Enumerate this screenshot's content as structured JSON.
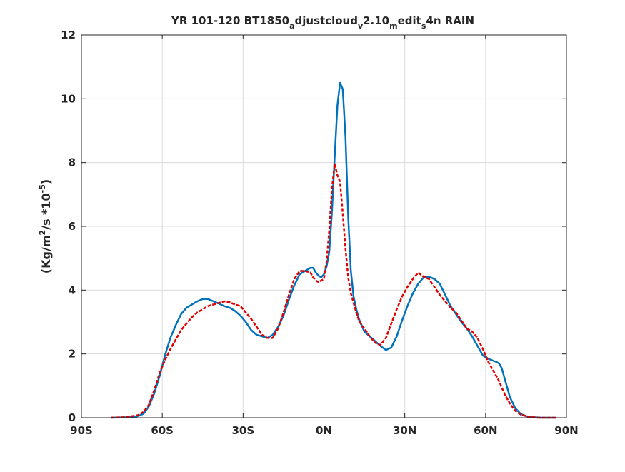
{
  "chart_data": {
    "type": "line",
    "title_parts": {
      "t1": "YR 101-120 BT1850",
      "s1": "a",
      "t2": "djustcloud",
      "s2": "v",
      "t3": "2.10",
      "s3": "m",
      "t4": "edit",
      "s4": "s",
      "t5": "4n RAIN"
    },
    "ylabel_parts": {
      "p1": "(Kg/m",
      "sup1": "2",
      "p2": "/s   *10",
      "sup2": "-5",
      "p3": ")"
    },
    "xlim": [
      -90,
      90
    ],
    "ylim": [
      0,
      12
    ],
    "xticks": [
      -90,
      -60,
      -30,
      0,
      30,
      60,
      90
    ],
    "xtick_labels": [
      "90S",
      "60S",
      "30S",
      "0N",
      "30N",
      "60N",
      "90N"
    ],
    "yticks": [
      0,
      2,
      4,
      6,
      8,
      10,
      12
    ],
    "ytick_labels": [
      "0",
      "2",
      "4",
      "6",
      "8",
      "10",
      "12"
    ],
    "grid": true,
    "series": [
      {
        "color": "#0072BD",
        "style": "solid",
        "x": [
          -79,
          -70,
          -67,
          -65,
          -63,
          -61,
          -59,
          -57,
          -55,
          -53,
          -51,
          -49,
          -47,
          -45,
          -43,
          -41,
          -39,
          -37,
          -35,
          -33,
          -31,
          -29,
          -27,
          -25,
          -23,
          -21,
          -19,
          -17,
          -15,
          -13,
          -11,
          -9,
          -7,
          -6,
          -5,
          -4,
          -3,
          -2,
          -1,
          0,
          1,
          2,
          3,
          4,
          5,
          6,
          7,
          8,
          9,
          10,
          11,
          12,
          13,
          14,
          15,
          17,
          19,
          21,
          23,
          25,
          27,
          29,
          31,
          33,
          35,
          37,
          39,
          41,
          43,
          45,
          47,
          49,
          51,
          53,
          55,
          57,
          59,
          61,
          63,
          64,
          65,
          66,
          67,
          69,
          71,
          73,
          75,
          77,
          79,
          81,
          83,
          85,
          86
        ],
        "values": [
          0.0,
          0.02,
          0.12,
          0.35,
          0.75,
          1.3,
          1.95,
          2.5,
          2.9,
          3.25,
          3.45,
          3.55,
          3.65,
          3.72,
          3.72,
          3.65,
          3.58,
          3.5,
          3.45,
          3.35,
          3.2,
          3.0,
          2.75,
          2.6,
          2.55,
          2.5,
          2.6,
          2.85,
          3.2,
          3.7,
          4.15,
          4.5,
          4.6,
          4.65,
          4.7,
          4.7,
          4.55,
          4.45,
          4.4,
          4.5,
          4.75,
          5.2,
          6.5,
          8.2,
          9.8,
          10.5,
          10.3,
          8.8,
          6.3,
          4.6,
          3.8,
          3.4,
          3.1,
          2.9,
          2.7,
          2.55,
          2.4,
          2.25,
          2.12,
          2.2,
          2.55,
          3.05,
          3.5,
          3.9,
          4.2,
          4.4,
          4.42,
          4.35,
          4.2,
          3.85,
          3.5,
          3.25,
          3.0,
          2.8,
          2.55,
          2.25,
          1.95,
          1.85,
          1.78,
          1.75,
          1.7,
          1.55,
          1.25,
          0.65,
          0.3,
          0.12,
          0.05,
          0.02,
          0.01,
          0.0,
          0.0,
          0.0,
          0.0
        ]
      },
      {
        "color": "#E00000",
        "style": "dashed",
        "x": [
          -79,
          -73,
          -69,
          -67,
          -65,
          -63,
          -61,
          -59,
          -57,
          -55,
          -53,
          -51,
          -49,
          -47,
          -45,
          -43,
          -41,
          -39,
          -37,
          -35,
          -33,
          -31,
          -29,
          -27,
          -25,
          -23,
          -21,
          -19,
          -17,
          -15,
          -13,
          -11,
          -9,
          -7,
          -5,
          -4,
          -3,
          -2,
          -1,
          0,
          1,
          2,
          3,
          4,
          5,
          6,
          7,
          8,
          9,
          10,
          11,
          12,
          13,
          14,
          15,
          17,
          19,
          21,
          23,
          25,
          27,
          29,
          31,
          33,
          35,
          37,
          39,
          41,
          43,
          45,
          47,
          49,
          51,
          53,
          55,
          57,
          59,
          61,
          63,
          65,
          67,
          69,
          71,
          73,
          75,
          77,
          79,
          81,
          83,
          85,
          86
        ],
        "values": [
          0.0,
          0.02,
          0.08,
          0.18,
          0.4,
          0.85,
          1.4,
          1.8,
          2.15,
          2.45,
          2.75,
          2.95,
          3.15,
          3.3,
          3.4,
          3.5,
          3.55,
          3.6,
          3.65,
          3.62,
          3.55,
          3.5,
          3.3,
          3.1,
          2.85,
          2.6,
          2.5,
          2.5,
          2.8,
          3.3,
          3.85,
          4.35,
          4.6,
          4.6,
          4.55,
          4.4,
          4.3,
          4.25,
          4.3,
          4.35,
          4.9,
          5.9,
          7.2,
          7.95,
          7.6,
          7.4,
          6.4,
          5.3,
          4.4,
          3.9,
          3.6,
          3.3,
          3.05,
          2.9,
          2.8,
          2.55,
          2.35,
          2.28,
          2.5,
          2.95,
          3.4,
          3.8,
          4.1,
          4.35,
          4.55,
          4.42,
          4.35,
          4.1,
          3.85,
          3.65,
          3.45,
          3.3,
          3.05,
          2.8,
          2.7,
          2.5,
          2.15,
          1.75,
          1.45,
          1.15,
          0.75,
          0.45,
          0.22,
          0.1,
          0.05,
          0.02,
          0.0,
          0.0,
          0.0,
          0.0,
          0.0
        ]
      }
    ]
  }
}
